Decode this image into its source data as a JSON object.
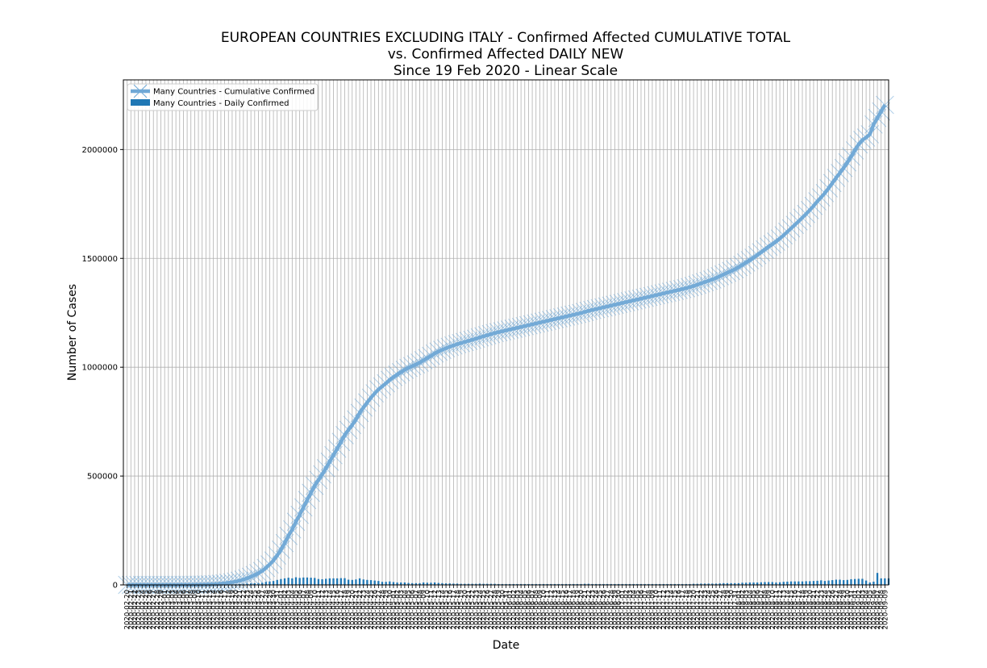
{
  "chart_data": {
    "type": "line",
    "title": "EUROPEAN COUNTRIES EXCLUDING ITALY - Confirmed Affected CUMULATIVE TOTAL\nvs. Confirmed Affected DAILY NEW\nSince 19 Feb 2020 - Linear Scale",
    "xlabel": "Date",
    "ylabel": "Number of Cases",
    "ylim": [
      0,
      2320000
    ],
    "yticks": [
      0,
      500000,
      1000000,
      1500000,
      2000000
    ],
    "ytick_labels": [
      "0",
      "500000",
      "1000000",
      "1500000",
      "2000000"
    ],
    "x_start": "2020-02-20",
    "x_end": "2020-09-10",
    "grid": true,
    "legend_location": "upper left",
    "series": [
      {
        "name": "Many Countries - Cumulative Confirmed",
        "kind": "line",
        "marker": "x",
        "color": "#6fa8d6",
        "values": [
          0,
          1,
          1,
          2,
          5,
          9,
          18,
          30,
          45,
          60,
          80,
          110,
          150,
          200,
          270,
          360,
          480,
          620,
          800,
          1050,
          1350,
          1800,
          2400,
          3200,
          4300,
          5700,
          7500,
          9700,
          12300,
          15500,
          19500,
          24500,
          30500,
          37500,
          45500,
          54000,
          64000,
          78000,
          94000,
          112000,
          135000,
          162000,
          192000,
          225000,
          255000,
          290000,
          322000,
          356000,
          390000,
          423000,
          455000,
          482000,
          508000,
          536000,
          566000,
          596000,
          626000,
          657000,
          688000,
          712000,
          735000,
          760000,
          790000,
          815000,
          838000,
          860000,
          880000,
          898000,
          912000,
          926000,
          942000,
          955000,
          966000,
          977000,
          988000,
          997000,
          1005000,
          1013000,
          1021000,
          1032000,
          1042000,
          1052000,
          1063000,
          1072000,
          1080000,
          1087000,
          1094000,
          1100000,
          1106000,
          1111000,
          1116000,
          1121000,
          1126000,
          1131000,
          1137000,
          1142000,
          1147000,
          1152000,
          1157000,
          1161000,
          1165000,
          1169000,
          1173000,
          1177000,
          1181000,
          1185000,
          1189000,
          1193000,
          1197000,
          1201000,
          1205000,
          1209000,
          1213000,
          1217000,
          1221000,
          1225000,
          1229000,
          1233000,
          1237000,
          1241000,
          1245000,
          1249000,
          1254000,
          1259000,
          1263000,
          1267000,
          1271000,
          1275000,
          1279000,
          1283000,
          1287000,
          1291000,
          1295000,
          1299000,
          1303000,
          1307000,
          1311000,
          1315000,
          1319000,
          1323000,
          1327000,
          1331000,
          1335000,
          1339000,
          1343000,
          1347000,
          1351000,
          1355000,
          1359000,
          1363000,
          1368000,
          1373000,
          1379000,
          1385000,
          1391000,
          1397000,
          1403000,
          1410000,
          1418000,
          1426000,
          1434000,
          1442000,
          1450000,
          1460000,
          1470000,
          1481000,
          1492000,
          1503000,
          1515000,
          1528000,
          1541000,
          1554000,
          1565000,
          1577000,
          1591000,
          1606000,
          1622000,
          1638000,
          1654000,
          1670000,
          1687000,
          1704000,
          1722000,
          1741000,
          1762000,
          1780000,
          1800000,
          1822000,
          1846000,
          1870000,
          1892000,
          1915000,
          1941000,
          1968000,
          1996000,
          2024000,
          2044000,
          2055000,
          2070000,
          2115000,
          2145000,
          2175000,
          2205000
        ]
      },
      {
        "name": "Many Countries - Daily Confirmed",
        "kind": "bar",
        "color": "#1f77b4",
        "values": [
          0,
          1,
          0,
          1,
          3,
          4,
          9,
          12,
          15,
          15,
          20,
          30,
          40,
          50,
          70,
          90,
          120,
          140,
          180,
          250,
          300,
          450,
          600,
          800,
          1100,
          1400,
          1800,
          2200,
          2600,
          3200,
          4000,
          5000,
          6000,
          7000,
          8000,
          8500,
          10000,
          14000,
          16000,
          18000,
          23000,
          27000,
          30000,
          33000,
          30000,
          35000,
          32000,
          34000,
          34000,
          33000,
          32000,
          27000,
          26000,
          28000,
          30000,
          30000,
          30000,
          31000,
          31000,
          24000,
          23000,
          25000,
          30000,
          25000,
          23000,
          22000,
          20000,
          18000,
          14000,
          14000,
          16000,
          13000,
          11000,
          11000,
          11000,
          9000,
          8000,
          8000,
          8000,
          11000,
          10000,
          10000,
          11000,
          9000,
          8000,
          7000,
          7000,
          6000,
          6000,
          5000,
          5000,
          5000,
          5000,
          5000,
          6000,
          5000,
          5000,
          5000,
          5000,
          4000,
          4000,
          4000,
          4000,
          4000,
          4000,
          4000,
          4000,
          4000,
          4000,
          4000,
          4000,
          4000,
          4000,
          4000,
          4000,
          4000,
          4000,
          4000,
          4000,
          4000,
          4000,
          4000,
          5000,
          5000,
          4000,
          4000,
          4000,
          4000,
          4000,
          4000,
          4000,
          4000,
          4000,
          4000,
          4000,
          4000,
          4000,
          4000,
          4000,
          4000,
          4000,
          4000,
          4000,
          4000,
          4000,
          4000,
          4000,
          4000,
          4000,
          4000,
          4000,
          5000,
          5000,
          6000,
          6000,
          6000,
          6000,
          6000,
          7000,
          8000,
          8000,
          8000,
          8000,
          8000,
          10000,
          10000,
          11000,
          11000,
          11000,
          12000,
          13000,
          13000,
          13000,
          11000,
          12000,
          14000,
          15000,
          16000,
          16000,
          16000,
          16000,
          17000,
          17000,
          18000,
          19000,
          21000,
          18000,
          20000,
          22000,
          24000,
          24000,
          22000,
          23000,
          26000,
          27000,
          28000,
          28000,
          20000,
          11000,
          15000,
          55000,
          30000,
          30000,
          30000
        ]
      }
    ]
  }
}
